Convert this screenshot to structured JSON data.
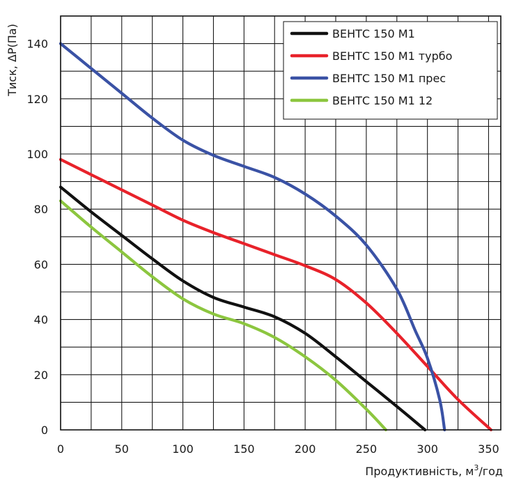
{
  "chart_data": {
    "type": "line",
    "title": "",
    "xlabel_main": "Продуктивність, м",
    "xlabel_sup": "3",
    "xlabel_tail": "/год",
    "ylabel": "Тиск, ΔP(Па)",
    "xlim": [
      0,
      360
    ],
    "ylim": [
      0,
      150
    ],
    "x_ticks": [
      0,
      50,
      100,
      150,
      200,
      250,
      300,
      350
    ],
    "y_ticks": [
      0,
      20,
      40,
      60,
      80,
      100,
      120,
      140
    ],
    "x_grid": [
      0,
      25,
      50,
      75,
      100,
      125,
      150,
      175,
      200,
      225,
      250,
      275,
      300,
      325,
      350
    ],
    "y_grid": [
      0,
      10,
      20,
      30,
      40,
      50,
      60,
      70,
      80,
      90,
      100,
      110,
      120,
      130,
      140,
      150
    ],
    "legend_position": "top-right",
    "series": [
      {
        "name": "ВЕНТС 150 М1",
        "color": "#111111",
        "points": [
          [
            0,
            88
          ],
          [
            25,
            79
          ],
          [
            50,
            70.5
          ],
          [
            75,
            62
          ],
          [
            100,
            54
          ],
          [
            125,
            48
          ],
          [
            150,
            44.5
          ],
          [
            175,
            41
          ],
          [
            200,
            35
          ],
          [
            225,
            26.5
          ],
          [
            250,
            17.5
          ],
          [
            275,
            8.5
          ],
          [
            298,
            0
          ]
        ]
      },
      {
        "name": "ВЕНТС 150 М1 турбо",
        "color": "#e8222a",
        "points": [
          [
            0,
            98
          ],
          [
            25,
            92.5
          ],
          [
            50,
            87
          ],
          [
            75,
            81.5
          ],
          [
            100,
            76
          ],
          [
            125,
            71.5
          ],
          [
            150,
            67.5
          ],
          [
            175,
            63.5
          ],
          [
            200,
            59.5
          ],
          [
            225,
            54.5
          ],
          [
            250,
            46
          ],
          [
            275,
            35
          ],
          [
            300,
            23
          ],
          [
            325,
            11
          ],
          [
            352,
            0
          ]
        ]
      },
      {
        "name": "ВЕНТС 150 М1 прес",
        "color": "#3a52a5",
        "points": [
          [
            0,
            140
          ],
          [
            25,
            131
          ],
          [
            50,
            122
          ],
          [
            75,
            113
          ],
          [
            100,
            105
          ],
          [
            125,
            99.5
          ],
          [
            150,
            95.5
          ],
          [
            175,
            91.5
          ],
          [
            200,
            85.5
          ],
          [
            225,
            77.5
          ],
          [
            250,
            67
          ],
          [
            275,
            51
          ],
          [
            290,
            36
          ],
          [
            300,
            26
          ],
          [
            310,
            11
          ],
          [
            314,
            0
          ]
        ]
      },
      {
        "name": "ВЕНТС 150 М1  12",
        "color": "#8cc63f",
        "points": [
          [
            0,
            83
          ],
          [
            25,
            73.5
          ],
          [
            50,
            64.5
          ],
          [
            75,
            55.5
          ],
          [
            100,
            47.5
          ],
          [
            125,
            42
          ],
          [
            150,
            38.5
          ],
          [
            175,
            33.5
          ],
          [
            200,
            26.5
          ],
          [
            225,
            18
          ],
          [
            250,
            7.5
          ],
          [
            266,
            0
          ]
        ]
      }
    ]
  }
}
